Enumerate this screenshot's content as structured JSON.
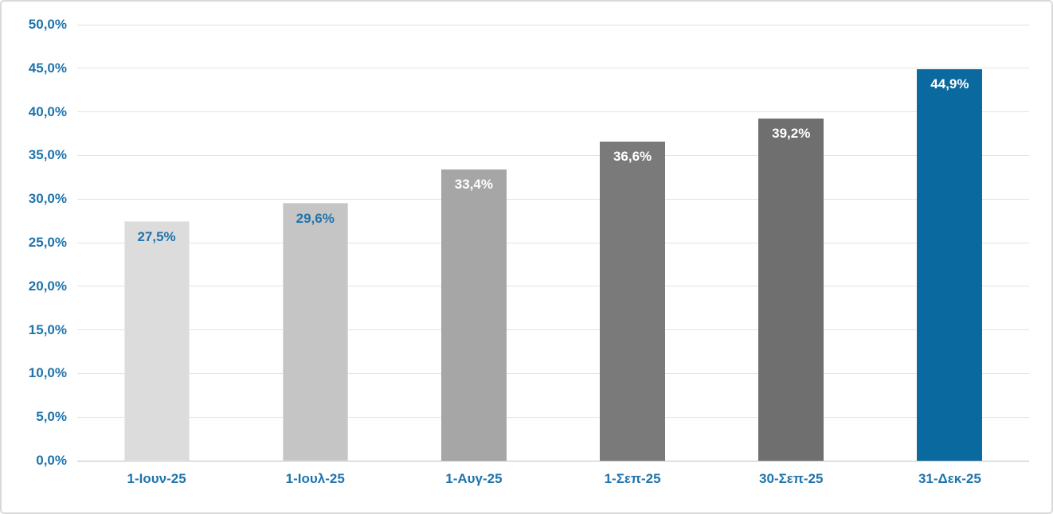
{
  "chart_data": {
    "type": "bar",
    "title": "",
    "xlabel": "",
    "ylabel": "",
    "categories": [
      "1-Ιουν-25",
      "1-Ιουλ-25",
      "1-Αυγ-25",
      "1-Σεπ-25",
      "30-Σεπ-25",
      "31-Δεκ-25"
    ],
    "values": [
      27.5,
      29.6,
      33.4,
      36.6,
      39.2,
      44.9
    ],
    "value_labels": [
      "27,5%",
      "29,6%",
      "33,4%",
      "36,6%",
      "39,2%",
      "44,9%"
    ],
    "bar_colors": [
      "#DCDCDC",
      "#C5C5C5",
      "#A6A6A6",
      "#7A7A7A",
      "#6F6F6F",
      "#0A699E"
    ],
    "value_label_colors": [
      "#1F74AC",
      "#1F74AC",
      "#FFFFFF",
      "#FFFFFF",
      "#FFFFFF",
      "#FFFFFF"
    ],
    "y_axis": {
      "min": 0,
      "max": 50,
      "ticks": [
        0,
        5,
        10,
        15,
        20,
        25,
        30,
        35,
        40,
        45,
        50
      ],
      "tick_labels": [
        "0,0%",
        "5,0%",
        "10,0%",
        "15,0%",
        "20,0%",
        "25,0%",
        "30,0%",
        "35,0%",
        "40,0%",
        "45,0%",
        "50,0%"
      ]
    },
    "grid": true,
    "legend": "none",
    "colors": {
      "axis_text": "#1F74AC",
      "gridline": "#E3E3E3",
      "axis_line": "#BFBFBF",
      "frame_border": "#D9D9D9",
      "background": "#FFFFFF",
      "highlight_bar": "#0A699E"
    }
  }
}
